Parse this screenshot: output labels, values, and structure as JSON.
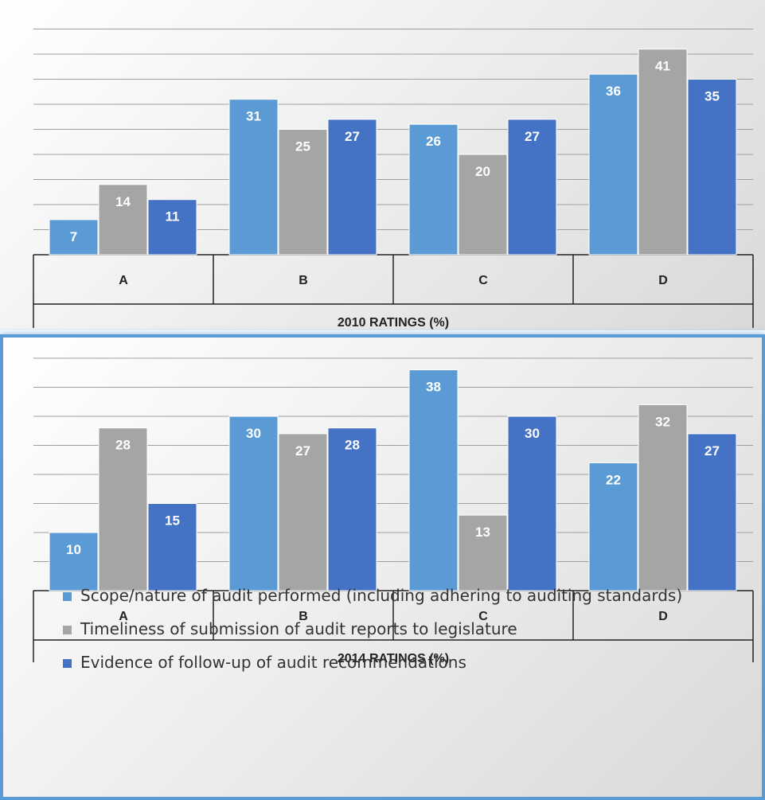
{
  "chart_data": [
    {
      "type": "bar",
      "title": "",
      "xlabel": "2010 RATINGS (%)",
      "ylabel": "",
      "categories": [
        "A",
        "B",
        "C",
        "D"
      ],
      "series": [
        {
          "name": "Scope/nature of audit performed (including adhering to auditing standards)",
          "color": "#5b9bd5",
          "values": [
            7,
            31,
            26,
            36
          ]
        },
        {
          "name": "Timeliness of submission of audit reports to legislature",
          "color": "#a5a5a5",
          "values": [
            14,
            25,
            20,
            41
          ]
        },
        {
          "name": "Evidence of follow-up of audit recommendations",
          "color": "#4472c4",
          "values": [
            11,
            27,
            27,
            35
          ]
        }
      ],
      "ylim": [
        0,
        45
      ],
      "gridlines": true,
      "legend": "none"
    },
    {
      "type": "bar",
      "title": "",
      "xlabel": "2014 RATINGS (%)",
      "ylabel": "",
      "categories": [
        "A",
        "B",
        "C",
        "D"
      ],
      "series": [
        {
          "name": "Scope/nature of audit performed (including adhering to auditing standards)",
          "color": "#5b9bd5",
          "values": [
            10,
            30,
            38,
            22
          ]
        },
        {
          "name": "Timeliness of submission of audit reports to legislature",
          "color": "#a5a5a5",
          "values": [
            28,
            27,
            13,
            32
          ]
        },
        {
          "name": "Evidence of follow-up of audit recommendations",
          "color": "#4472c4",
          "values": [
            15,
            28,
            30,
            27
          ]
        }
      ],
      "ylim": [
        0,
        40
      ],
      "gridlines": true,
      "legend": "bottom"
    }
  ],
  "legend": {
    "items": [
      {
        "label": "Scope/nature of audit performed (including adhering to auditing standards)",
        "color": "#5b9bd5"
      },
      {
        "label": "Timeliness of submission of audit reports to legislature",
        "color": "#a5a5a5"
      },
      {
        "label": "Evidence of follow-up of audit recommendations",
        "color": "#4472c4"
      }
    ]
  }
}
